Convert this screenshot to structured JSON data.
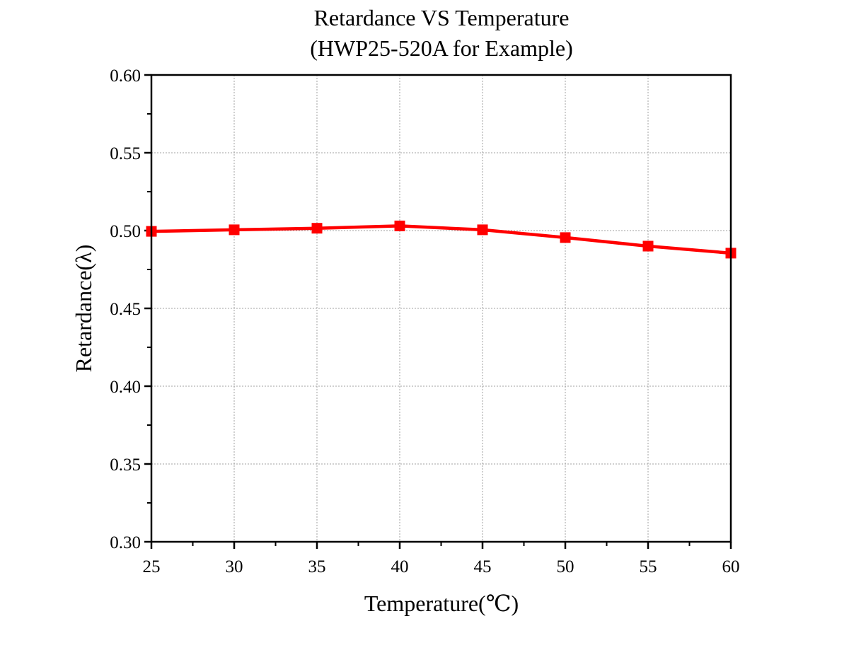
{
  "chart_data": {
    "type": "line",
    "title": "Retardance VS Temperature",
    "subtitle": "(HWP25-520A for Example)",
    "xlabel": "Temperature(℃)",
    "ylabel": "Retardance(λ)",
    "xlim": [
      25,
      60
    ],
    "ylim": [
      0.3,
      0.6
    ],
    "xticks": [
      25,
      30,
      35,
      40,
      45,
      50,
      55,
      60
    ],
    "xtick_labels": [
      "25",
      "30",
      "35",
      "40",
      "45",
      "50",
      "55",
      "60"
    ],
    "yticks": [
      0.3,
      0.35,
      0.4,
      0.45,
      0.5,
      0.55,
      0.6
    ],
    "ytick_labels": [
      "0.30",
      "0.35",
      "0.40",
      "0.45",
      "0.50",
      "0.55",
      "0.60"
    ],
    "grid": true,
    "series": [
      {
        "color": "#ff0000",
        "marker": "square",
        "x": [
          25,
          30,
          35,
          40,
          45,
          50,
          55,
          60
        ],
        "y": [
          0.4995,
          0.5005,
          0.5015,
          0.503,
          0.5005,
          0.4955,
          0.49,
          0.4855
        ]
      }
    ]
  }
}
